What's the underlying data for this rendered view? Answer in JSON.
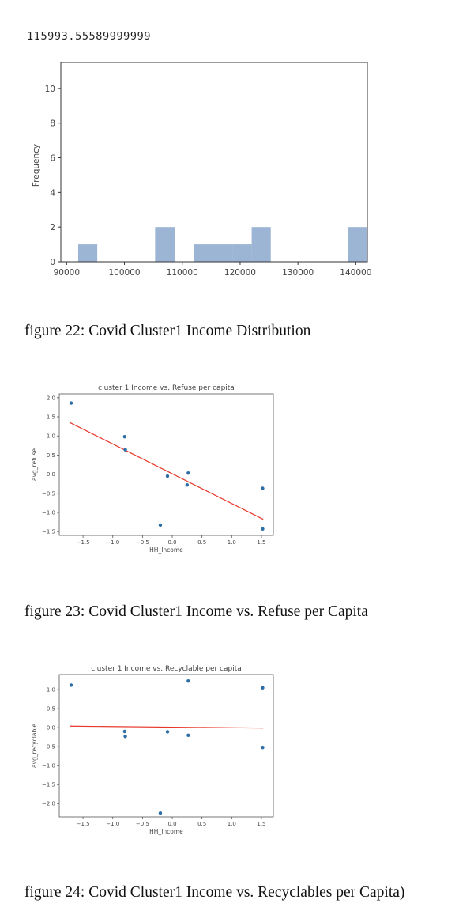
{
  "output_text": "115993.55589999999",
  "captions": {
    "fig22": "figure 22: Covid Cluster1 Income Distribution",
    "fig23": "figure 23: Covid Cluster1 Income vs. Refuse per Capita",
    "fig24": "figure 24: Covid Cluster1 Income vs. Recyclables per Capita)"
  },
  "colors": {
    "bar": "#9db5d4",
    "point": "#2e6ea6",
    "fit_line": "#e8382a",
    "axis": "#333333"
  },
  "chart_data": [
    {
      "type": "bar",
      "title": "",
      "xlabel": "",
      "ylabel": "Frequency",
      "xlim": [
        89000,
        142000
      ],
      "ylim": [
        0,
        11.5
      ],
      "x_ticks": [
        "90000",
        "100000",
        "110000",
        "120000",
        "130000",
        "140000"
      ],
      "y_ticks": [
        "0",
        "2",
        "4",
        "6",
        "8",
        "10"
      ],
      "bins": [
        {
          "x0": 92000,
          "x1": 95300,
          "count": 1
        },
        {
          "x0": 95300,
          "x1": 98700,
          "count": 0
        },
        {
          "x0": 98700,
          "x1": 102000,
          "count": 0
        },
        {
          "x0": 102000,
          "x1": 105300,
          "count": 0
        },
        {
          "x0": 105300,
          "x1": 108700,
          "count": 2
        },
        {
          "x0": 108700,
          "x1": 112000,
          "count": 0
        },
        {
          "x0": 112000,
          "x1": 115300,
          "count": 1
        },
        {
          "x0": 115300,
          "x1": 118700,
          "count": 1
        },
        {
          "x0": 118700,
          "x1": 122000,
          "count": 1
        },
        {
          "x0": 122000,
          "x1": 125300,
          "count": 2
        },
        {
          "x0": 125300,
          "x1": 128700,
          "count": 0
        },
        {
          "x0": 128700,
          "x1": 132000,
          "count": 0
        },
        {
          "x0": 132000,
          "x1": 135300,
          "count": 0
        },
        {
          "x0": 135300,
          "x1": 138700,
          "count": 0
        },
        {
          "x0": 138700,
          "x1": 142000,
          "count": 2
        }
      ]
    },
    {
      "type": "scatter",
      "title": "cluster 1 Income vs. Refuse per capita",
      "xlabel": "HH_Income",
      "ylabel": "avg_refuse",
      "xlim": [
        -1.9,
        1.7
      ],
      "ylim": [
        -1.6,
        2.1
      ],
      "x_ticks": [
        "−1.5",
        "−1.0",
        "−0.5",
        "0.0",
        "0.5",
        "1.0",
        "1.5"
      ],
      "x_tick_values": [
        -1.5,
        -1.0,
        -0.5,
        0.0,
        0.5,
        1.0,
        1.5
      ],
      "y_ticks": [
        "2.0",
        "1.5",
        "1.0",
        "0.5",
        "0.0",
        "−0.5",
        "−1.0",
        "−1.5"
      ],
      "y_tick_values": [
        2.0,
        1.5,
        1.0,
        0.5,
        0.0,
        -0.5,
        -1.0,
        -1.5
      ],
      "points": [
        {
          "x": -1.7,
          "y": 1.86
        },
        {
          "x": -0.8,
          "y": 0.98
        },
        {
          "x": -0.79,
          "y": 0.64
        },
        {
          "x": -0.08,
          "y": -0.05
        },
        {
          "x": 0.27,
          "y": 0.03
        },
        {
          "x": 0.25,
          "y": -0.28
        },
        {
          "x": -0.2,
          "y": -1.33
        },
        {
          "x": 1.52,
          "y": -0.37
        },
        {
          "x": 1.52,
          "y": -1.43
        }
      ],
      "fit_line": {
        "x": [
          -1.72,
          1.53
        ],
        "y": [
          1.35,
          -1.18
        ]
      }
    },
    {
      "type": "scatter",
      "title": "cluster 1 Income vs. Recyclable per capita",
      "xlabel": "HH_Income",
      "ylabel": "avg_recyclable",
      "xlim": [
        -1.9,
        1.7
      ],
      "ylim": [
        -2.35,
        1.4
      ],
      "x_ticks": [
        "−1.5",
        "−1.0",
        "−0.5",
        "0.0",
        "0.5",
        "1.0",
        "1.5"
      ],
      "x_tick_values": [
        -1.5,
        -1.0,
        -0.5,
        0.0,
        0.5,
        1.0,
        1.5
      ],
      "y_ticks": [
        "1.0",
        "0.5",
        "0.0",
        "−0.5",
        "−1.0",
        "−1.5",
        "−2.0"
      ],
      "y_tick_values": [
        1.0,
        0.5,
        0.0,
        -0.5,
        -1.0,
        -1.5,
        -2.0
      ],
      "points": [
        {
          "x": -1.7,
          "y": 1.12
        },
        {
          "x": -0.8,
          "y": -0.1
        },
        {
          "x": -0.79,
          "y": -0.23
        },
        {
          "x": -0.08,
          "y": -0.11
        },
        {
          "x": 0.27,
          "y": 1.23
        },
        {
          "x": 0.27,
          "y": -0.2
        },
        {
          "x": -0.2,
          "y": -2.25
        },
        {
          "x": 1.52,
          "y": 1.05
        },
        {
          "x": 1.52,
          "y": -0.52
        }
      ],
      "fit_line": {
        "x": [
          -1.72,
          1.53
        ],
        "y": [
          0.04,
          -0.01
        ]
      }
    }
  ]
}
